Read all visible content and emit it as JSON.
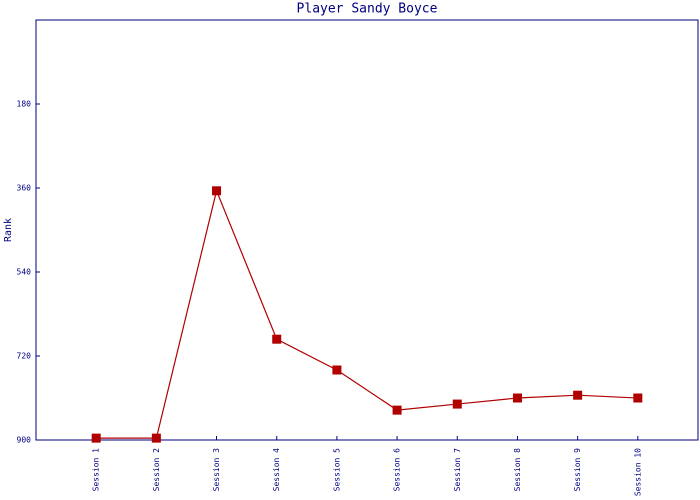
{
  "chart_data": {
    "type": "line",
    "title": "Player Sandy Boyce",
    "y_label": "Rank",
    "categories": [
      "Session 1",
      "Session 2",
      "Session 3",
      "Session 4",
      "Session 5",
      "Session 6",
      "Session 7",
      "Session 8",
      "Session 9",
      "Session 10"
    ],
    "series": [
      {
        "name": "Rank",
        "color": "#b00000",
        "values": [
          896,
          896,
          366,
          684,
          750,
          836,
          823,
          810,
          804,
          810
        ]
      }
    ],
    "ylim": [
      900,
      0
    ],
    "yticks": [
      180,
      360,
      540,
      720,
      900
    ],
    "grid": false
  }
}
